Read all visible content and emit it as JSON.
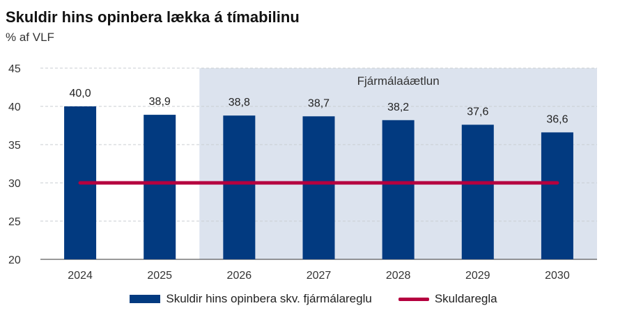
{
  "chart_data": {
    "type": "bar",
    "title": "Skuldir hins opinbera lækka á tímabilinu",
    "subtitle": "% af VLF",
    "categories": [
      "2024",
      "2025",
      "2026",
      "2027",
      "2028",
      "2029",
      "2030"
    ],
    "series": [
      {
        "name": "Skuldir hins opinbera skv. fjármálareglu",
        "type": "bar",
        "color": "#023a80",
        "values": [
          40.0,
          38.9,
          38.8,
          38.7,
          38.2,
          37.6,
          36.6
        ],
        "labels": [
          "40,0",
          "38,9",
          "38,8",
          "38,7",
          "38,2",
          "37,6",
          "36,6"
        ]
      },
      {
        "name": "Skuldaregla",
        "type": "line",
        "color": "#b5003f",
        "values": [
          30,
          30,
          30,
          30,
          30,
          30,
          30
        ]
      }
    ],
    "ylim": [
      20,
      45
    ],
    "yticks": [
      20,
      25,
      30,
      35,
      40,
      45
    ],
    "grid": true,
    "shaded_region": {
      "from": "2026",
      "to": "2030",
      "label": "Fjármálaáætlun",
      "color": "#dce3ee"
    },
    "legend_position": "bottom"
  }
}
